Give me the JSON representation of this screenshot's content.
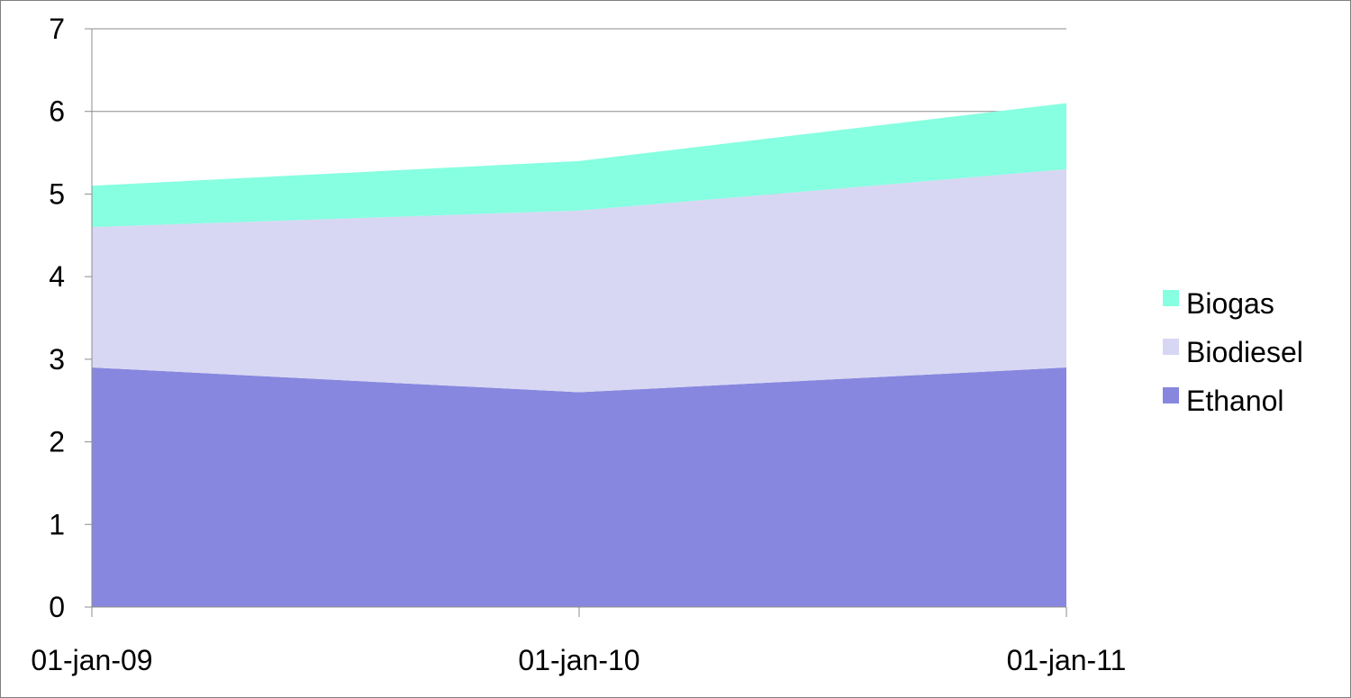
{
  "chart_data": {
    "type": "area",
    "stacked": true,
    "title": "",
    "xlabel": "",
    "ylabel": "",
    "x": [
      "01-jan-09",
      "01-jan-10",
      "01-jan-11"
    ],
    "ylim": [
      0,
      7
    ],
    "yticks": [
      0,
      1,
      2,
      3,
      4,
      5,
      6,
      7
    ],
    "grid": true,
    "legend_position": "right",
    "series": [
      {
        "name": "Ethanol",
        "values": [
          2.9,
          2.6,
          2.9
        ],
        "color": "#8787df"
      },
      {
        "name": "Biodiesel",
        "values": [
          1.7,
          2.2,
          2.4
        ],
        "color": "#d7d7f3"
      },
      {
        "name": "Biogas",
        "values": [
          0.5,
          0.6,
          0.8
        ],
        "color": "#87ffe1"
      }
    ]
  }
}
